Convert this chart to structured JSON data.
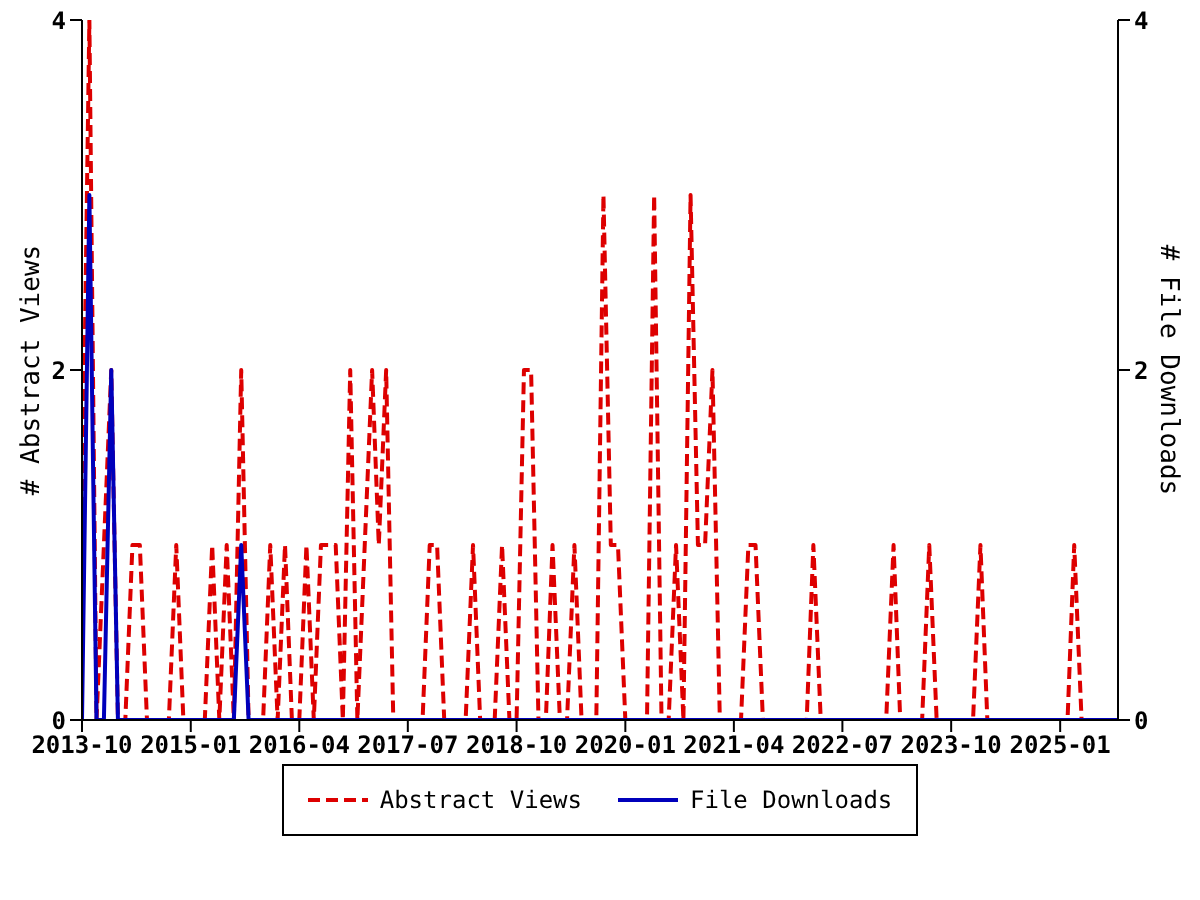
{
  "chart_data": {
    "type": "line",
    "ylabel": "# Abstract Views",
    "y2label": "# File Downloads",
    "x": [
      "2013-10",
      "2013-11",
      "2013-12",
      "2014-01",
      "2014-02",
      "2014-03",
      "2014-04",
      "2014-05",
      "2014-06",
      "2014-07",
      "2014-08",
      "2014-09",
      "2014-10",
      "2014-11",
      "2014-12",
      "2015-01",
      "2015-02",
      "2015-03",
      "2015-04",
      "2015-05",
      "2015-06",
      "2015-07",
      "2015-08",
      "2015-09",
      "2015-10",
      "2015-11",
      "2015-12",
      "2016-01",
      "2016-02",
      "2016-03",
      "2016-04",
      "2016-05",
      "2016-06",
      "2016-07",
      "2016-08",
      "2016-09",
      "2016-10",
      "2016-11",
      "2016-12",
      "2017-01",
      "2017-02",
      "2017-03",
      "2017-04",
      "2017-05",
      "2017-06",
      "2017-07",
      "2017-08",
      "2017-09",
      "2017-10",
      "2017-11",
      "2017-12",
      "2018-01",
      "2018-02",
      "2018-03",
      "2018-04",
      "2018-05",
      "2018-06",
      "2018-07",
      "2018-08",
      "2018-09",
      "2018-10",
      "2018-11",
      "2018-12",
      "2019-01",
      "2019-02",
      "2019-03",
      "2019-04",
      "2019-05",
      "2019-06",
      "2019-07",
      "2019-08",
      "2019-09",
      "2019-10",
      "2019-11",
      "2019-12",
      "2020-01",
      "2020-02",
      "2020-03",
      "2020-04",
      "2020-05",
      "2020-06",
      "2020-07",
      "2020-08",
      "2020-09",
      "2020-10",
      "2020-11",
      "2020-12",
      "2021-01",
      "2021-02",
      "2021-03",
      "2021-04",
      "2021-05",
      "2021-06",
      "2021-07",
      "2021-08",
      "2021-09",
      "2021-10",
      "2021-11",
      "2021-12",
      "2022-01",
      "2022-02",
      "2022-03",
      "2022-04",
      "2022-05",
      "2022-06",
      "2022-07",
      "2022-08",
      "2022-09",
      "2022-10",
      "2022-11",
      "2022-12",
      "2023-01",
      "2023-02",
      "2023-03",
      "2023-04",
      "2023-05",
      "2023-06",
      "2023-07",
      "2023-08",
      "2023-09",
      "2023-10",
      "2023-11",
      "2023-12",
      "2024-01",
      "2024-02",
      "2024-03",
      "2024-04",
      "2024-05",
      "2024-06",
      "2024-07",
      "2024-08",
      "2024-09",
      "2024-10",
      "2024-11",
      "2024-12",
      "2025-01",
      "2025-02",
      "2025-03",
      "2025-04",
      "2025-05",
      "2025-06",
      "2025-07",
      "2025-08",
      "2025-09"
    ],
    "series": [
      {
        "name": "Abstract Views",
        "color": "#dd0000",
        "line_style": "dashed",
        "values": [
          1,
          4,
          0,
          1,
          2,
          0,
          0,
          1,
          1,
          0,
          0,
          0,
          0,
          1,
          0,
          0,
          0,
          0,
          1,
          0,
          1,
          0,
          2,
          0,
          0,
          0,
          1,
          0,
          1,
          0,
          0,
          1,
          0,
          1,
          1,
          1,
          0,
          2,
          0,
          1,
          2,
          1,
          2,
          0,
          0,
          0,
          0,
          0,
          1,
          1,
          0,
          0,
          0,
          0,
          1,
          0,
          0,
          0,
          1,
          0,
          0,
          2,
          2,
          0,
          0,
          1,
          0,
          0,
          1,
          0,
          0,
          0,
          3,
          1,
          1,
          0,
          0,
          0,
          0,
          3,
          0,
          0,
          1,
          0,
          3,
          1,
          1,
          2,
          0,
          0,
          0,
          0,
          1,
          1,
          0,
          0,
          0,
          0,
          0,
          0,
          0,
          1,
          0,
          0,
          0,
          0,
          0,
          0,
          0,
          0,
          0,
          0,
          1,
          0,
          0,
          0,
          0,
          1,
          0,
          0,
          0,
          0,
          0,
          0,
          1,
          0,
          0,
          0,
          0,
          0,
          0,
          0,
          0,
          0,
          0,
          0,
          0,
          1,
          0,
          0,
          0,
          0,
          null,
          null
        ]
      },
      {
        "name": "File Downloads",
        "color": "#0000bb",
        "line_style": "solid",
        "axis": "y2",
        "values": [
          0,
          3,
          0,
          0,
          2,
          0,
          0,
          0,
          0,
          0,
          0,
          0,
          0,
          0,
          0,
          0,
          0,
          0,
          0,
          0,
          0,
          0,
          1,
          0,
          0,
          0,
          0,
          0,
          0,
          0,
          0,
          0,
          0,
          0,
          0,
          0,
          0,
          0,
          0,
          0,
          0,
          0,
          0,
          0,
          0,
          0,
          0,
          0,
          0,
          0,
          0,
          0,
          0,
          0,
          0,
          0,
          0,
          0,
          0,
          0,
          0,
          0,
          0,
          0,
          0,
          0,
          0,
          0,
          0,
          0,
          0,
          0,
          0,
          0,
          0,
          0,
          0,
          0,
          0,
          0,
          0,
          0,
          0,
          0,
          0,
          0,
          0,
          0,
          0,
          0,
          0,
          0,
          0,
          0,
          0,
          0,
          0,
          0,
          0,
          0,
          0,
          0,
          0,
          0,
          0,
          0,
          0,
          0,
          0,
          0,
          0,
          0,
          0,
          0,
          0,
          0,
          0,
          0,
          0,
          0,
          0,
          0,
          0,
          0,
          0,
          0,
          0,
          0,
          0,
          0,
          0,
          0,
          0,
          0,
          0,
          0,
          0,
          0,
          0,
          0,
          0,
          0,
          0,
          0
        ]
      }
    ],
    "xlim": [
      "2013-10",
      "2025-09"
    ],
    "xticks": [
      "2013-10",
      "2015-01",
      "2016-04",
      "2017-07",
      "2018-10",
      "2020-01",
      "2021-04",
      "2022-07",
      "2023-10",
      "2025-01"
    ],
    "ylim": [
      0,
      4
    ],
    "yticks": [
      0,
      2,
      4
    ],
    "y2lim": [
      0,
      4
    ],
    "y2ticks": [
      0,
      2,
      4
    ],
    "grid": false,
    "legend": "bottom",
    "marker": "none"
  }
}
